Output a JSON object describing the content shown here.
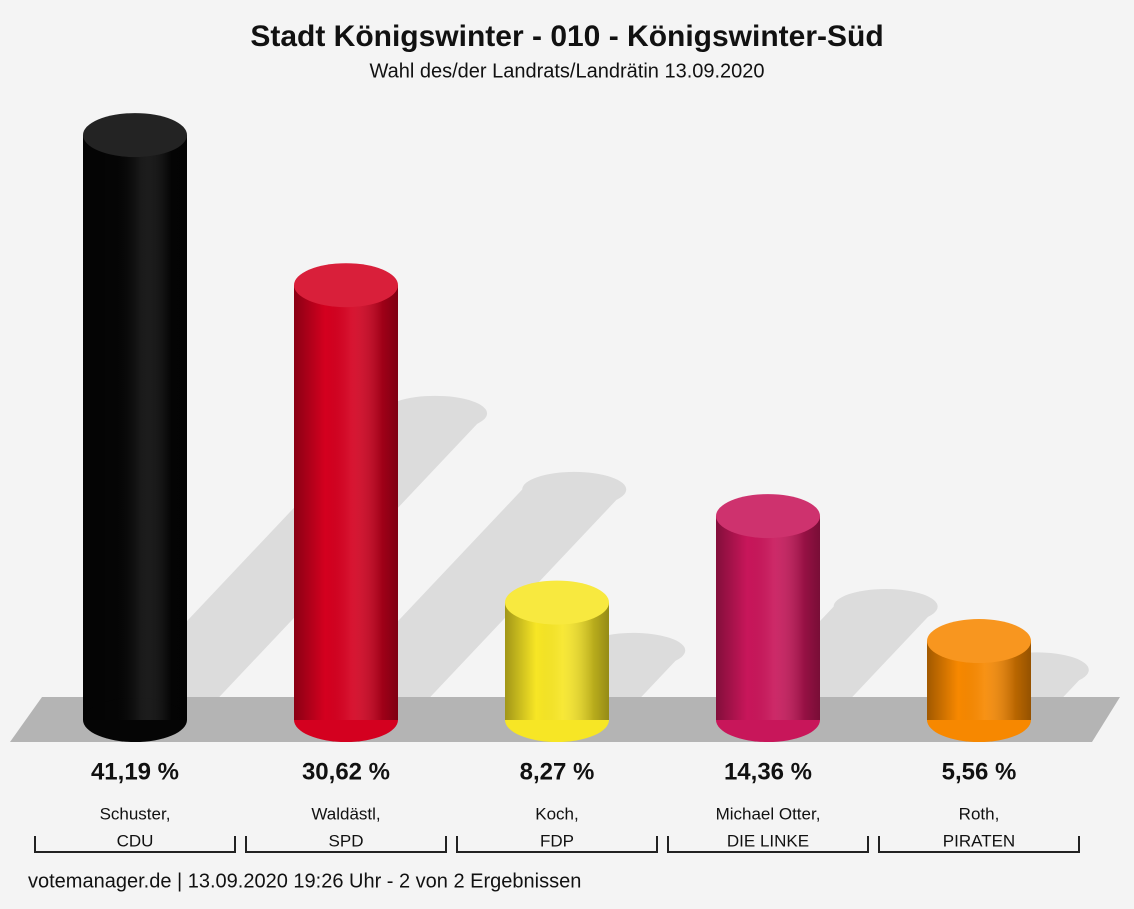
{
  "chart_data": {
    "type": "bar",
    "title": "Stadt Königswinter - 010 - Königswinter-Süd",
    "subtitle": "Wahl des/der Landrats/Landrätin 13.09.2020",
    "categories": [
      [
        "Schuster,",
        "CDU"
      ],
      [
        "Waldästl,",
        "SPD"
      ],
      [
        "Koch,",
        "FDP"
      ],
      [
        "Michael Otter,",
        "DIE LINKE"
      ],
      [
        "Roth,",
        "PIRATEN"
      ]
    ],
    "values": [
      41.19,
      30.62,
      8.27,
      14.36,
      5.56
    ],
    "value_labels": [
      "41,19 %",
      "30,62 %",
      "8,27 %",
      "14,36 %",
      "5,56 %"
    ],
    "colors": [
      "#050505",
      "#d4001f",
      "#f7e625",
      "#c8165a",
      "#f78800"
    ],
    "source": "votemanager.de | 13.09.2020 19:26 Uhr - 2 von 2 Ergebnissen"
  }
}
